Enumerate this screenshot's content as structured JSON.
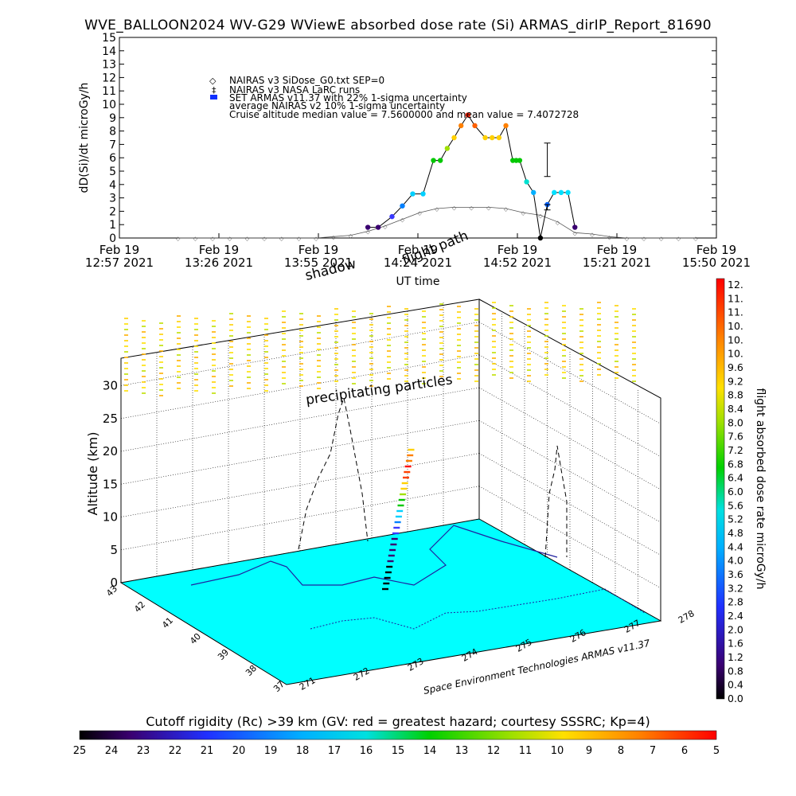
{
  "title": "WVE_BALLOON2024 WV-G29 WViewE absorbed dose rate (Si) ARMAS_dirIP_Report_81690",
  "colors": {
    "nairas_v3": "#555555",
    "armas_line": "#000000",
    "surface_fill": "#00ffff",
    "grid": "#000000"
  },
  "chart_data": [
    {
      "type": "line",
      "id": "dose_rate_timeseries",
      "title": "",
      "ylabel": "dD(Si)/dt microGy/h",
      "xlabel": "UT time",
      "ylim": [
        0,
        15
      ],
      "yticks": [
        0,
        1,
        2,
        3,
        4,
        5,
        6,
        7,
        8,
        9,
        10,
        11,
        12,
        13,
        14,
        15
      ],
      "xticks": [
        {
          "date": "Feb 19",
          "time": "12:57 2021"
        },
        {
          "date": "Feb 19",
          "time": "13:26 2021"
        },
        {
          "date": "Feb 19",
          "time": "13:55 2021"
        },
        {
          "date": "Feb 19",
          "time": "14:24 2021"
        },
        {
          "date": "Feb 19",
          "time": "14:52 2021"
        },
        {
          "date": "Feb 19",
          "time": "15:21 2021"
        },
        {
          "date": "Feb 19",
          "time": "15:50 2021"
        }
      ],
      "xrange_min": [
        0,
        173
      ],
      "legend": [
        {
          "marker": "◇",
          "text": "NAIRAS v3 SiDose_G0.txt SEP=0"
        },
        {
          "marker": "‡",
          "text": "NAIRAS v3 NASA LaRC runs"
        },
        {
          "marker": "■",
          "text": "SET ARMAS v11.37 with 22% 1-sigma uncertainty"
        },
        {
          "marker": "",
          "text": "average NAIRAS v2 10% 1-sigma uncertainty"
        },
        {
          "marker": "",
          "text": "Cruise altitude median value = 7.5600000 and mean value = 7.4072728"
        }
      ],
      "series": [
        {
          "name": "NAIRAS v3 SiDose_G0.txt SEP=0",
          "x_min": [
            17,
            22,
            27,
            32,
            37,
            42,
            47,
            52,
            57,
            62,
            67,
            72,
            77,
            82,
            87,
            92,
            97,
            102,
            107,
            112,
            117,
            122,
            127,
            132,
            137,
            142,
            147,
            152,
            157,
            162,
            167
          ],
          "values": [
            0,
            0,
            0,
            0,
            0,
            0,
            0,
            0,
            0,
            0.1,
            0.2,
            0.5,
            0.9,
            1.4,
            1.9,
            2.2,
            2.3,
            2.3,
            2.3,
            2.2,
            1.9,
            1.7,
            1.2,
            0.4,
            0.3,
            0.1,
            0,
            0,
            0,
            0,
            0
          ]
        },
        {
          "name": "SET ARMAS v11.37 with 22% 1-sigma uncertainty",
          "x_min": [
            72,
            75,
            79,
            82,
            85,
            88,
            91,
            93,
            95,
            97,
            99,
            101,
            103,
            106,
            108,
            110,
            112,
            114,
            115,
            116,
            118,
            120,
            122,
            124,
            126,
            128,
            130,
            132
          ],
          "values": [
            0.8,
            0.8,
            1.6,
            2.4,
            3.3,
            3.3,
            5.8,
            5.8,
            6.7,
            7.5,
            8.4,
            9.2,
            8.4,
            7.5,
            7.5,
            7.5,
            8.4,
            5.8,
            5.8,
            5.8,
            4.2,
            3.4,
            0,
            2.5,
            3.4,
            3.4,
            3.4,
            0.8
          ],
          "colors": [
            "#3a0070",
            "#3a0070",
            "#3a3aff",
            "#0080ff",
            "#00d0ff",
            "#00d0ff",
            "#00c800",
            "#00c800",
            "#a0e000",
            "#ffd000",
            "#ff8000",
            "#ff2000",
            "#ff6000",
            "#ffd000",
            "#ffd000",
            "#ffd000",
            "#ff8000",
            "#00c800",
            "#00c800",
            "#00c800",
            "#00e0d0",
            "#00b0ff",
            "#000000",
            "#0060ff",
            "#00e0ff",
            "#00e0ff",
            "#00e0ff",
            "#3a0070"
          ]
        }
      ],
      "error_bars": [
        {
          "x_min": 124,
          "value": 5.8,
          "low": 4.6,
          "high": 7.1
        },
        {
          "x_min": 124,
          "value": 2.3,
          "low": 2.1,
          "high": 2.5
        }
      ]
    },
    {
      "type": "scatter",
      "id": "flight_3d",
      "zlabel": "Altitude (km)",
      "zticks": [
        0,
        5,
        10,
        15,
        20,
        25,
        30
      ],
      "lat_ticks": [
        "43",
        "42",
        "41",
        "40",
        "39",
        "38",
        "37"
      ],
      "lon_ticks": [
        "271",
        "272",
        "273",
        "274",
        "275",
        "276",
        "277",
        "278"
      ],
      "annotations": [
        "precipitating particles",
        "shadow",
        "flight path"
      ],
      "credit": "Space Environment Technologies ARMAS v11.37",
      "colorbar": {
        "label": "flight absorbed dose rate microGy/h",
        "ticks": [
          "12.",
          "11.",
          "11.",
          "10.",
          "10.",
          "10.",
          "9.6",
          "9.2",
          "8.8",
          "8.4",
          "8.0",
          "7.6",
          "7.2",
          "6.8",
          "6.4",
          "6.0",
          "5.6",
          "5.2",
          "4.8",
          "4.4",
          "4.0",
          "3.6",
          "3.2",
          "2.8",
          "2.4",
          "2.0",
          "1.6",
          "1.2",
          "0.8",
          "0.4",
          "0.0"
        ]
      },
      "rigidity_bar": {
        "title": "Cutoff rigidity (Rc) >39 km (GV: red = greatest hazard; courtesy SSSRC; Kp=4)",
        "ticks": [
          "25",
          "24",
          "23",
          "22",
          "21",
          "20",
          "19",
          "18",
          "17",
          "16",
          "15",
          "14",
          "13",
          "12",
          "11",
          "10",
          "9",
          "8",
          "7",
          "6",
          "5"
        ]
      }
    }
  ]
}
